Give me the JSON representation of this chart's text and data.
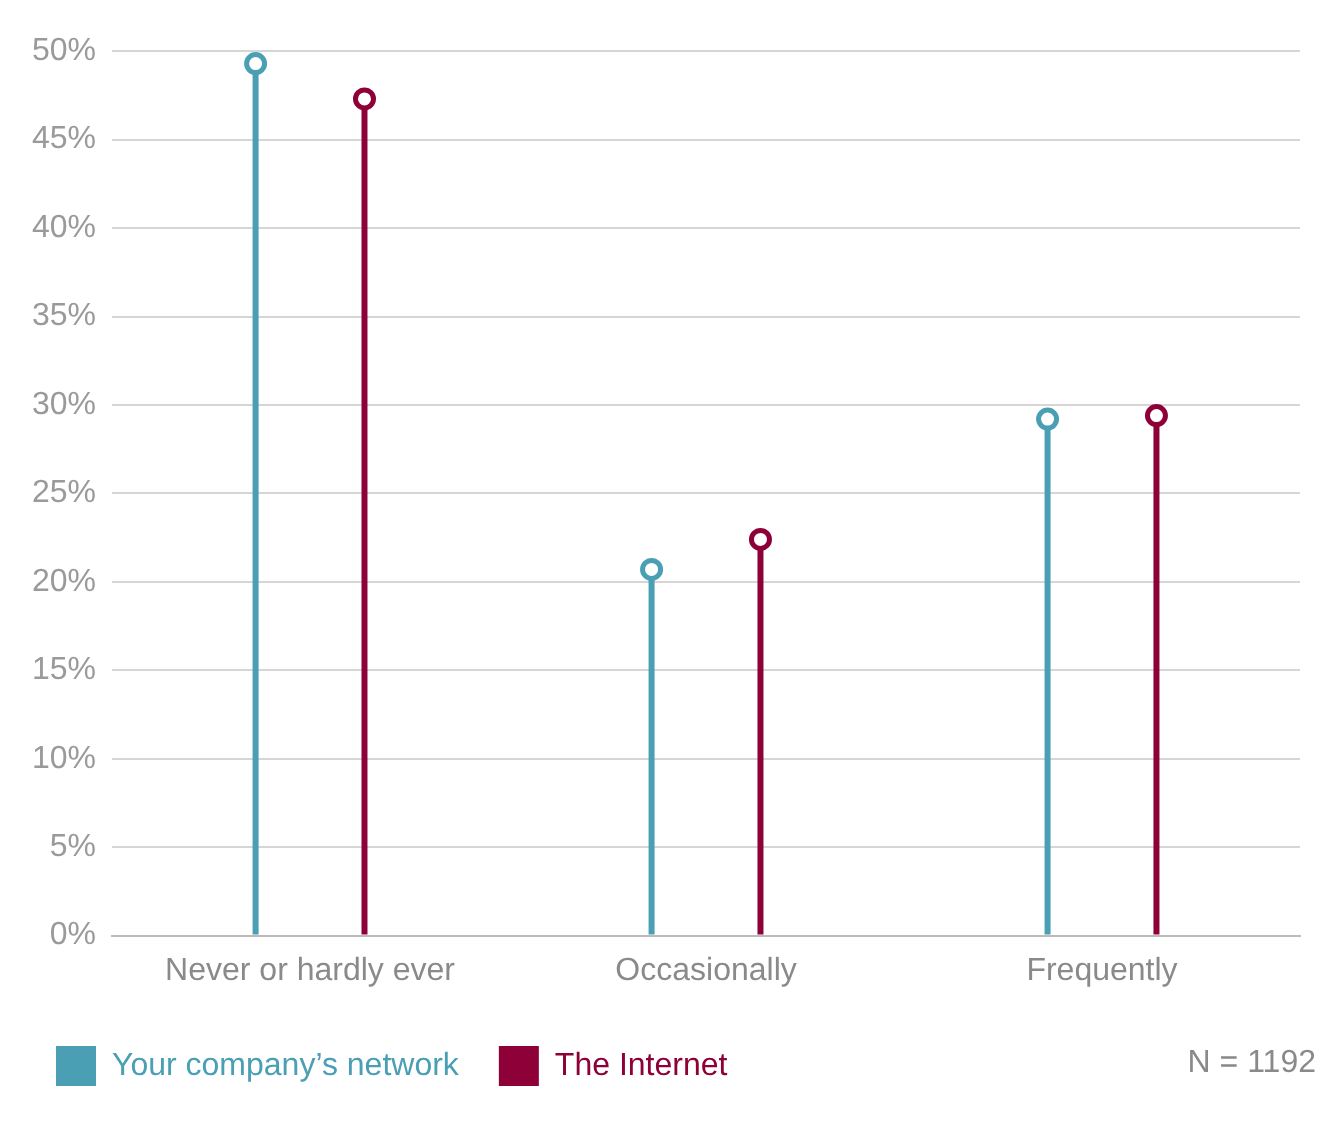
{
  "chart_data": {
    "type": "lollipop",
    "categories": [
      "Never or hardly ever",
      "Occasionally",
      "Frequently"
    ],
    "series": [
      {
        "name": "Your company’s network",
        "color": "#4a9fb5",
        "values": [
          49.3,
          20.7,
          29.2
        ]
      },
      {
        "name": "The Internet",
        "color": "#8e0038",
        "values": [
          47.3,
          22.4,
          29.4
        ]
      }
    ],
    "ylim": [
      0,
      50
    ],
    "yticks": [
      {
        "value": 0,
        "label": "0%"
      },
      {
        "value": 5,
        "label": "5%"
      },
      {
        "value": 10,
        "label": "10%"
      },
      {
        "value": 15,
        "label": "15%"
      },
      {
        "value": 20,
        "label": "20%"
      },
      {
        "value": 25,
        "label": "25%"
      },
      {
        "value": 30,
        "label": "30%"
      },
      {
        "value": 35,
        "label": "35%"
      },
      {
        "value": 40,
        "label": "40%"
      },
      {
        "value": 45,
        "label": "45%"
      },
      {
        "value": 50,
        "label": "50%"
      }
    ],
    "grid": "y",
    "legend": "bottom",
    "marker": "circle",
    "annotations": [
      "N = 1192"
    ]
  }
}
